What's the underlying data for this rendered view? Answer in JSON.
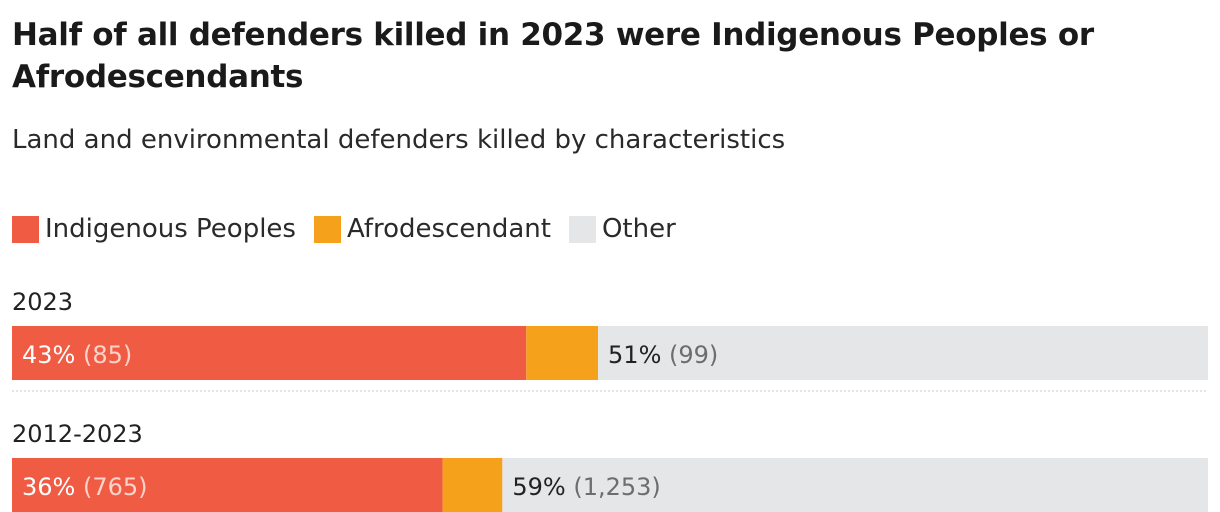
{
  "title": "Half of all defenders killed in 2023 were Indigenous Peoples or Afrodescendants",
  "subtitle": "Land and environmental defenders killed by characteristics",
  "legend": [
    {
      "name": "Indigenous Peoples",
      "color": "#f05c43"
    },
    {
      "name": "Afrodescendant",
      "color": "#f5a11c"
    },
    {
      "name": "Other",
      "color": "#e5e6e8"
    }
  ],
  "chart_data": {
    "type": "bar",
    "orientation": "horizontal",
    "stacked": true,
    "categories": [
      "2023",
      "2012-2023"
    ],
    "series": [
      {
        "name": "Indigenous Peoples",
        "values": [
          43,
          36
        ],
        "labels": [
          "43%",
          "36%"
        ],
        "counts": [
          "(85)",
          "(765)"
        ]
      },
      {
        "name": "Afrodescendant",
        "values": [
          6,
          5
        ]
      },
      {
        "name": "Other",
        "values": [
          51,
          59
        ],
        "labels": [
          "51%",
          "59%"
        ],
        "counts": [
          "(99)",
          "(1,253)"
        ]
      }
    ],
    "xlim": [
      0,
      100
    ],
    "legend_position": "top-left",
    "grid": false
  }
}
